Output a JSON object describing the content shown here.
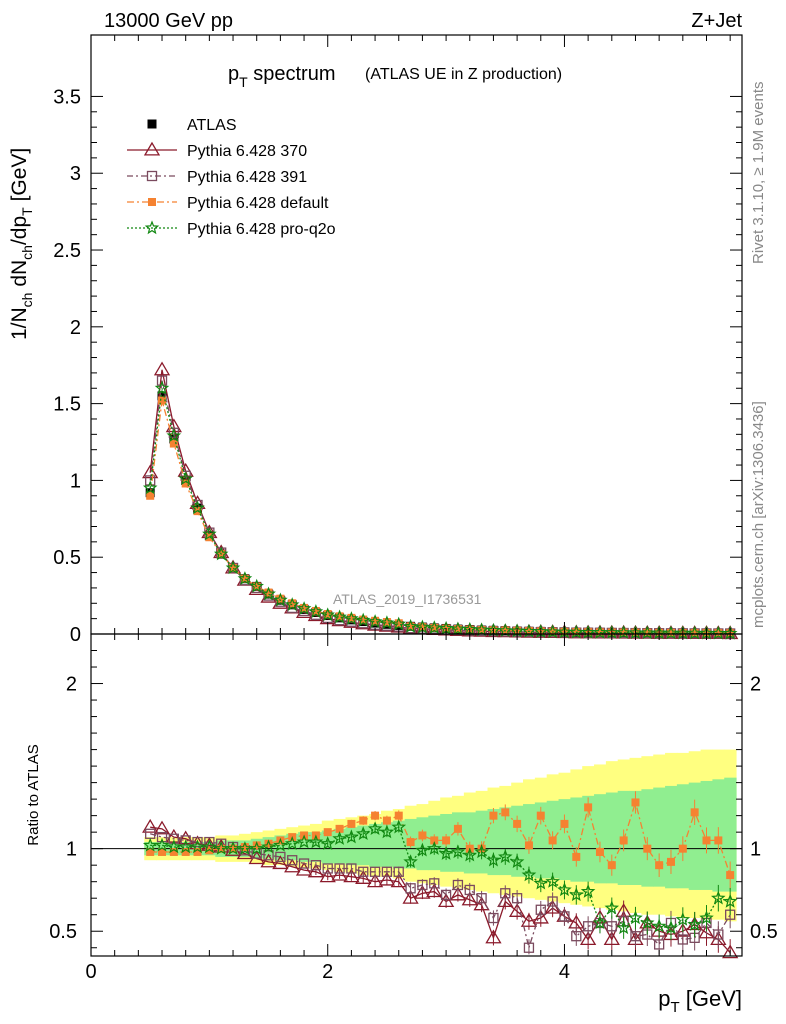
{
  "header": {
    "left": "13000 GeV pp",
    "right": "Z+Jet"
  },
  "side_labels": {
    "rivet": "Rivet 3.1.10, ≥ 1.9M events",
    "mcplots": "mcplots.cern.ch [arXiv:1306.3436]"
  },
  "analysis_id": "ATLAS_2019_I1736531",
  "colors": {
    "atlas": "#000000",
    "p370": "#8b1a2b",
    "p391": "#7a4a5e",
    "pdefault": "#f58231",
    "pq2o": "#118811",
    "band_yellow": "#ffff80",
    "band_green": "#90ee90"
  },
  "chart_data": [
    {
      "type": "line",
      "title": "p_T spectrum",
      "title_main": "p",
      "title_sub": "T",
      "title_rest": " spectrum",
      "subtitle": "(ATLAS UE in Z production)",
      "ylabel": "1/N_ch dN_ch/dp_T [GeV]",
      "ylim": [
        0,
        3.9
      ],
      "xlim": [
        0,
        5.5
      ],
      "y_ticks": [
        "0",
        "0.5",
        "1",
        "1.5",
        "2",
        "2.5",
        "3",
        "3.5"
      ],
      "legend": {
        "placement": "top-left",
        "entries": [
          "ATLAS",
          "Pythia 6.428 370",
          "Pythia 6.428 391",
          "Pythia 6.428 default",
          "Pythia 6.428 pro-q2o"
        ]
      },
      "x": [
        0.5,
        0.6,
        0.7,
        0.8,
        0.9,
        1.0,
        1.1,
        1.2,
        1.3,
        1.4,
        1.5,
        1.6,
        1.7,
        1.8,
        1.9,
        2.0,
        2.1,
        2.2,
        2.3,
        2.4,
        2.5,
        2.6,
        2.7,
        2.8,
        2.9,
        3.0,
        3.1,
        3.2,
        3.3,
        3.4,
        3.5,
        3.6,
        3.7,
        3.8,
        3.9,
        4.0,
        4.1,
        4.2,
        4.3,
        4.4,
        4.5,
        4.6,
        4.7,
        4.8,
        4.9,
        5.0,
        5.1,
        5.2,
        5.3,
        5.4
      ],
      "series": [
        {
          "name": "ATLAS",
          "values": [
            0.92,
            1.55,
            1.27,
            1.0,
            0.82,
            0.64,
            0.52,
            0.43,
            0.36,
            0.31,
            0.26,
            0.22,
            0.19,
            0.16,
            0.14,
            0.12,
            0.105,
            0.092,
            0.081,
            0.071,
            0.063,
            0.056,
            0.05,
            0.045,
            0.04,
            0.036,
            0.032,
            0.029,
            0.026,
            0.024,
            0.022,
            0.02,
            0.018,
            0.017,
            0.015,
            0.014,
            0.013,
            0.012,
            0.011,
            0.01,
            0.0095,
            0.0088,
            0.0082,
            0.0076,
            0.0071,
            0.0066,
            0.0062,
            0.0058,
            0.0055,
            0.0052
          ]
        },
        {
          "name": "Pythia 6.428 370",
          "values": [
            1.05,
            1.72,
            1.35,
            1.06,
            0.85,
            0.66,
            0.53,
            0.43,
            0.35,
            0.29,
            0.24,
            0.2,
            0.17,
            0.14,
            0.12,
            0.1,
            0.087,
            0.076,
            0.066,
            0.057,
            0.051,
            0.045,
            0.036,
            0.033,
            0.03,
            0.026,
            0.023,
            0.02,
            0.018,
            0.016,
            0.015,
            0.013,
            0.012,
            0.011,
            0.01,
            0.009,
            0.008,
            0.0075,
            0.007,
            0.0065,
            0.006,
            0.0055,
            0.005,
            0.0045,
            0.0042,
            0.004,
            0.0038,
            0.0035,
            0.0033,
            0.003
          ]
        },
        {
          "name": "Pythia 6.428 391",
          "values": [
            1.0,
            1.65,
            1.31,
            1.03,
            0.84,
            0.66,
            0.53,
            0.43,
            0.35,
            0.3,
            0.25,
            0.21,
            0.17,
            0.15,
            0.125,
            0.105,
            0.09,
            0.08,
            0.07,
            0.06,
            0.054,
            0.048,
            0.038,
            0.035,
            0.032,
            0.028,
            0.025,
            0.022,
            0.02,
            0.018,
            0.016,
            0.014,
            0.013,
            0.012,
            0.011,
            0.01,
            0.009,
            0.0085,
            0.008,
            0.0072,
            0.0066,
            0.006,
            0.0055,
            0.005,
            0.0046,
            0.0043,
            0.004,
            0.0038,
            0.0035,
            0.0033
          ]
        },
        {
          "name": "Pythia 6.428 default",
          "values": [
            0.9,
            1.52,
            1.24,
            0.98,
            0.8,
            0.63,
            0.52,
            0.43,
            0.36,
            0.31,
            0.27,
            0.23,
            0.2,
            0.17,
            0.15,
            0.13,
            0.115,
            0.105,
            0.094,
            0.086,
            0.078,
            0.07,
            0.05,
            0.045,
            0.04,
            0.036,
            0.032,
            0.029,
            0.026,
            0.024,
            0.023,
            0.021,
            0.019,
            0.017,
            0.015,
            0.014,
            0.013,
            0.012,
            0.011,
            0.01,
            0.0095,
            0.0088,
            0.0082,
            0.0076,
            0.0071,
            0.0066,
            0.0062,
            0.0058,
            0.0055,
            0.0052
          ]
        },
        {
          "name": "Pythia 6.428 pro-q2o",
          "values": [
            0.95,
            1.6,
            1.29,
            1.01,
            0.82,
            0.65,
            0.52,
            0.43,
            0.36,
            0.31,
            0.26,
            0.22,
            0.19,
            0.165,
            0.145,
            0.124,
            0.11,
            0.099,
            0.089,
            0.08,
            0.072,
            0.064,
            0.048,
            0.044,
            0.04,
            0.036,
            0.032,
            0.029,
            0.026,
            0.023,
            0.021,
            0.019,
            0.017,
            0.015,
            0.013,
            0.012,
            0.011,
            0.01,
            0.009,
            0.0085,
            0.008,
            0.0072,
            0.0066,
            0.006,
            0.0055,
            0.005,
            0.0046,
            0.0043,
            0.004,
            0.0038
          ]
        }
      ]
    },
    {
      "type": "line",
      "title": "",
      "ylabel": "Ratio to ATLAS",
      "xlabel": "p_T [GeV]",
      "xlabel_main": "p",
      "xlabel_sub": "T",
      "xlabel_rest": " [GeV]",
      "ylim": [
        0.35,
        2.3
      ],
      "xlim": [
        0,
        5.5
      ],
      "x_ticks": [
        "0",
        "2",
        "4"
      ],
      "y_ticks": [
        "0.5",
        "1",
        "2"
      ],
      "reference_line": 1,
      "x": [
        0.5,
        0.6,
        0.7,
        0.8,
        0.9,
        1.0,
        1.1,
        1.2,
        1.3,
        1.4,
        1.5,
        1.6,
        1.7,
        1.8,
        1.9,
        2.0,
        2.1,
        2.2,
        2.3,
        2.4,
        2.5,
        2.6,
        2.7,
        2.8,
        2.9,
        3.0,
        3.1,
        3.2,
        3.3,
        3.4,
        3.5,
        3.6,
        3.7,
        3.8,
        3.9,
        4.0,
        4.1,
        4.2,
        4.3,
        4.4,
        4.5,
        4.6,
        4.7,
        4.8,
        4.9,
        5.0,
        5.1,
        5.2,
        5.3,
        5.4
      ],
      "band_green": [
        [
          0.96,
          1.04
        ],
        [
          0.96,
          1.04
        ],
        [
          0.96,
          1.04
        ],
        [
          0.96,
          1.04
        ],
        [
          0.96,
          1.04
        ],
        [
          0.96,
          1.04
        ],
        [
          0.95,
          1.05
        ],
        [
          0.95,
          1.05
        ],
        [
          0.95,
          1.05
        ],
        [
          0.94,
          1.06
        ],
        [
          0.94,
          1.07
        ],
        [
          0.93,
          1.08
        ],
        [
          0.93,
          1.09
        ],
        [
          0.92,
          1.1
        ],
        [
          0.92,
          1.1
        ],
        [
          0.91,
          1.11
        ],
        [
          0.91,
          1.12
        ],
        [
          0.9,
          1.13
        ],
        [
          0.9,
          1.14
        ],
        [
          0.89,
          1.15
        ],
        [
          0.89,
          1.16
        ],
        [
          0.88,
          1.17
        ],
        [
          0.88,
          1.18
        ],
        [
          0.87,
          1.19
        ],
        [
          0.87,
          1.2
        ],
        [
          0.86,
          1.21
        ],
        [
          0.86,
          1.22
        ],
        [
          0.85,
          1.22
        ],
        [
          0.85,
          1.23
        ],
        [
          0.84,
          1.24
        ],
        [
          0.84,
          1.25
        ],
        [
          0.83,
          1.26
        ],
        [
          0.83,
          1.27
        ],
        [
          0.82,
          1.28
        ],
        [
          0.82,
          1.29
        ],
        [
          0.81,
          1.3
        ],
        [
          0.8,
          1.31
        ],
        [
          0.8,
          1.32
        ],
        [
          0.79,
          1.33
        ],
        [
          0.79,
          1.34
        ],
        [
          0.78,
          1.35
        ],
        [
          0.78,
          1.35
        ],
        [
          0.77,
          1.36
        ],
        [
          0.77,
          1.37
        ],
        [
          0.76,
          1.38
        ],
        [
          0.76,
          1.39
        ],
        [
          0.75,
          1.4
        ],
        [
          0.75,
          1.41
        ],
        [
          0.74,
          1.42
        ],
        [
          0.74,
          1.43
        ]
      ],
      "band_yellow": [
        [
          0.93,
          1.07
        ],
        [
          0.93,
          1.07
        ],
        [
          0.93,
          1.07
        ],
        [
          0.93,
          1.07
        ],
        [
          0.93,
          1.07
        ],
        [
          0.93,
          1.07
        ],
        [
          0.92,
          1.08
        ],
        [
          0.92,
          1.08
        ],
        [
          0.92,
          1.09
        ],
        [
          0.91,
          1.1
        ],
        [
          0.9,
          1.11
        ],
        [
          0.9,
          1.12
        ],
        [
          0.89,
          1.13
        ],
        [
          0.88,
          1.14
        ],
        [
          0.88,
          1.15
        ],
        [
          0.87,
          1.17
        ],
        [
          0.86,
          1.18
        ],
        [
          0.85,
          1.19
        ],
        [
          0.84,
          1.2
        ],
        [
          0.83,
          1.21
        ],
        [
          0.83,
          1.23
        ],
        [
          0.82,
          1.24
        ],
        [
          0.8,
          1.26
        ],
        [
          0.79,
          1.27
        ],
        [
          0.78,
          1.29
        ],
        [
          0.77,
          1.31
        ],
        [
          0.76,
          1.32
        ],
        [
          0.75,
          1.34
        ],
        [
          0.74,
          1.35
        ],
        [
          0.73,
          1.37
        ],
        [
          0.72,
          1.38
        ],
        [
          0.71,
          1.4
        ],
        [
          0.7,
          1.42
        ],
        [
          0.69,
          1.43
        ],
        [
          0.68,
          1.45
        ],
        [
          0.67,
          1.46
        ],
        [
          0.66,
          1.48
        ],
        [
          0.65,
          1.5
        ],
        [
          0.64,
          1.51
        ],
        [
          0.63,
          1.53
        ],
        [
          0.62,
          1.54
        ],
        [
          0.61,
          1.55
        ],
        [
          0.6,
          1.56
        ],
        [
          0.6,
          1.57
        ],
        [
          0.59,
          1.58
        ],
        [
          0.58,
          1.58
        ],
        [
          0.58,
          1.59
        ],
        [
          0.57,
          1.6
        ],
        [
          0.57,
          1.6
        ],
        [
          0.56,
          1.6
        ]
      ],
      "series": [
        {
          "name": "Pythia 6.428 370",
          "values": [
            1.13,
            1.12,
            1.07,
            1.06,
            1.03,
            1.02,
            1.01,
            0.99,
            0.97,
            0.94,
            0.92,
            0.91,
            0.89,
            0.87,
            0.86,
            0.83,
            0.84,
            0.83,
            0.82,
            0.8,
            0.81,
            0.8,
            0.7,
            0.73,
            0.74,
            0.68,
            0.72,
            0.69,
            0.66,
            0.46,
            0.68,
            0.62,
            0.56,
            0.58,
            0.64,
            0.59,
            0.55,
            0.45,
            0.58,
            0.45,
            0.62,
            0.45,
            0.55,
            0.5,
            0.48,
            0.5,
            0.54,
            0.49,
            0.45,
            0.37
          ]
        },
        {
          "name": "Pythia 6.428 391",
          "values": [
            1.09,
            1.07,
            1.06,
            1.05,
            1.04,
            1.04,
            1.03,
            1.01,
            0.99,
            0.97,
            0.96,
            0.95,
            0.93,
            0.91,
            0.9,
            0.88,
            0.88,
            0.88,
            0.86,
            0.86,
            0.86,
            0.86,
            0.76,
            0.78,
            0.79,
            0.72,
            0.78,
            0.75,
            0.7,
            0.58,
            0.73,
            0.7,
            0.4,
            0.63,
            0.68,
            0.59,
            0.47,
            0.53,
            0.55,
            0.53,
            0.56,
            0.47,
            0.48,
            0.42,
            0.55,
            0.45,
            0.46,
            0.55,
            0.48,
            0.6
          ]
        },
        {
          "name": "Pythia 6.428 default",
          "values": [
            0.98,
            0.98,
            0.98,
            0.98,
            0.98,
            0.99,
            1.0,
            1.0,
            1.01,
            1.02,
            1.03,
            1.05,
            1.07,
            1.08,
            1.08,
            1.1,
            1.12,
            1.15,
            1.17,
            1.2,
            1.17,
            1.2,
            1.04,
            1.08,
            1.05,
            1.05,
            1.12,
            1.0,
            1.0,
            1.2,
            1.22,
            1.15,
            1.02,
            1.2,
            1.05,
            1.15,
            0.95,
            1.25,
            0.98,
            0.9,
            1.05,
            1.28,
            1.0,
            0.9,
            0.92,
            1.0,
            1.22,
            1.05,
            1.05,
            0.84
          ]
        },
        {
          "name": "Pythia 6.428 pro-q2o",
          "values": [
            1.02,
            1.02,
            1.01,
            1.01,
            1.01,
            1.01,
            1.0,
            1.0,
            1.0,
            1.0,
            1.01,
            1.02,
            1.03,
            1.04,
            1.04,
            1.03,
            1.06,
            1.07,
            1.09,
            1.12,
            1.1,
            1.13,
            0.92,
            0.99,
            1.0,
            0.97,
            0.98,
            0.96,
            0.98,
            0.93,
            0.95,
            0.92,
            0.84,
            0.79,
            0.8,
            0.75,
            0.72,
            0.74,
            0.55,
            0.64,
            0.52,
            0.58,
            0.55,
            0.53,
            0.52,
            0.57,
            0.54,
            0.58,
            0.7,
            0.68
          ]
        }
      ]
    }
  ]
}
